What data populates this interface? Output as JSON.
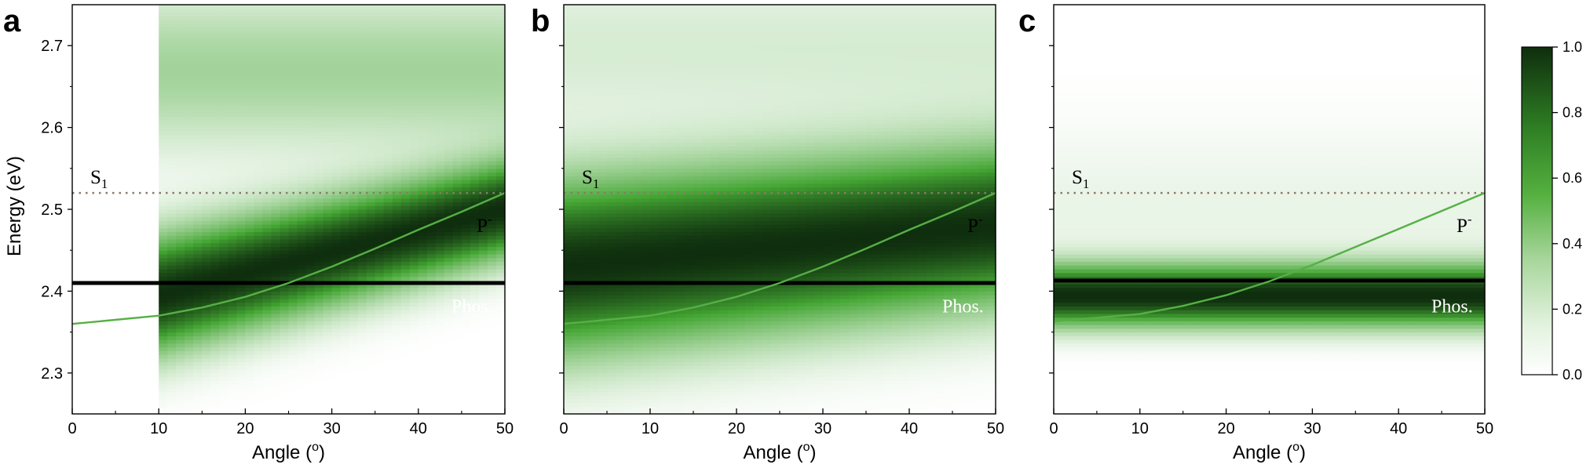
{
  "figure": {
    "panels": [
      "a",
      "b",
      "c"
    ],
    "xlabel_main": "Angle (",
    "xlabel_sup": "o",
    "xlabel_close": ")",
    "ylabel": "Energy (eV)"
  },
  "colors": {
    "map_low": "#ffffff",
    "map_mid": "#44a633",
    "map_high": "#0f2e0e",
    "polariton_line": "#56b045",
    "phos_line": "#000000",
    "s1_line": "#8a7a6a"
  },
  "colorbar": {
    "range": [
      0.0,
      1.0
    ],
    "ticks": [
      "0.0",
      "0.2",
      "0.4",
      "0.6",
      "0.8",
      "1.0"
    ]
  },
  "chart_data": [
    {
      "type": "heatmap",
      "panel": "a",
      "xlim": [
        0,
        50
      ],
      "ylim": [
        2.25,
        2.75
      ],
      "xticks": [
        0,
        10,
        20,
        30,
        40,
        50
      ],
      "yticks": [
        2.3,
        2.4,
        2.5,
        2.6,
        2.7
      ],
      "xlabel": "Angle (o)",
      "ylabel": "Energy (eV)",
      "data_x_start": 10,
      "peak": {
        "center_at_0": 2.37,
        "center_at_50": 2.5,
        "width_at_0": 0.07,
        "width_at_50": 0.055,
        "upper_branch_center": 2.67,
        "upper_branch_amp": 0.25
      },
      "lines": {
        "S1": {
          "y": 2.52,
          "label": "S",
          "sub": "1"
        },
        "Phos": {
          "y": 2.41,
          "label": "Phos.",
          "thick": true,
          "x_start": 0
        },
        "P_minus": {
          "label": "P",
          "sup": "-",
          "x": [
            0,
            10,
            15,
            20,
            25,
            30,
            35,
            40,
            45,
            50
          ],
          "y": [
            2.36,
            2.37,
            2.38,
            2.393,
            2.41,
            2.43,
            2.452,
            2.475,
            2.497,
            2.52
          ]
        }
      }
    },
    {
      "type": "heatmap",
      "panel": "b",
      "xlim": [
        0,
        50
      ],
      "ylim": [
        2.25,
        2.75
      ],
      "xticks": [
        0,
        10,
        20,
        30,
        40,
        50
      ],
      "yticks": [
        2.3,
        2.4,
        2.5,
        2.6,
        2.7
      ],
      "xlabel": "Angle (o)",
      "ylabel": "",
      "data_x_start": 0,
      "peak": {
        "center_at_0": 2.43,
        "center_at_50": 2.48,
        "width_at_0": 0.1,
        "width_at_50": 0.09,
        "upper_branch_center": 2.7,
        "upper_branch_amp": 0.1
      },
      "lines": {
        "S1": {
          "y": 2.52,
          "label": "S",
          "sub": "1"
        },
        "Phos": {
          "y": 2.41,
          "label": "Phos.",
          "thick": true,
          "x_start": 0
        },
        "P_minus": {
          "label": "P",
          "sup": "-",
          "x": [
            0,
            10,
            15,
            20,
            25,
            30,
            35,
            40,
            45,
            50
          ],
          "y": [
            2.36,
            2.37,
            2.38,
            2.393,
            2.41,
            2.43,
            2.452,
            2.475,
            2.497,
            2.52
          ]
        }
      }
    },
    {
      "type": "heatmap",
      "panel": "c",
      "xlim": [
        0,
        50
      ],
      "ylim": [
        2.25,
        2.75
      ],
      "xticks": [
        0,
        10,
        20,
        30,
        40,
        50
      ],
      "yticks": [
        2.3,
        2.4,
        2.5,
        2.6,
        2.7
      ],
      "xlabel": "Angle (o)",
      "ylabel": "",
      "data_x_start": 0,
      "peak": {
        "center_at_0": 2.395,
        "center_at_50": 2.395,
        "width_at_0": 0.035,
        "width_at_50": 0.035,
        "upper_branch_center": 2.5,
        "upper_branch_amp": 0.05
      },
      "lines": {
        "S1": {
          "y": 2.52,
          "label": "S",
          "sub": "1"
        },
        "Phos": {
          "y": 2.413,
          "label": "Phos.",
          "thick": true,
          "x_start": 0
        },
        "P_minus": {
          "label": "P",
          "sup": "-",
          "x": [
            0,
            10,
            15,
            20,
            25,
            30,
            35,
            40,
            45,
            50
          ],
          "y": [
            2.363,
            2.372,
            2.382,
            2.395,
            2.412,
            2.432,
            2.454,
            2.476,
            2.498,
            2.52
          ]
        }
      }
    }
  ]
}
